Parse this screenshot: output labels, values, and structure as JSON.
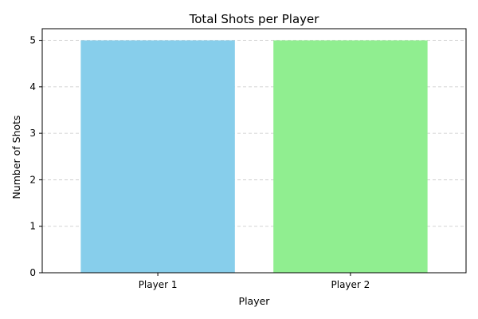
{
  "chart_data": {
    "type": "bar",
    "title": "Total Shots per Player",
    "xlabel": "Player",
    "ylabel": "Number of Shots",
    "categories": [
      "Player 1",
      "Player 2"
    ],
    "values": [
      5,
      5
    ],
    "bar_colors": [
      "#87ceeb",
      "#90ee90"
    ],
    "ylim": [
      0,
      5.25
    ],
    "yticks": [
      0,
      1,
      2,
      3,
      4,
      5
    ],
    "ytick_labels": [
      "0",
      "1",
      "2",
      "3",
      "4",
      "5"
    ],
    "grid": "y-dashed",
    "legend": "none"
  }
}
